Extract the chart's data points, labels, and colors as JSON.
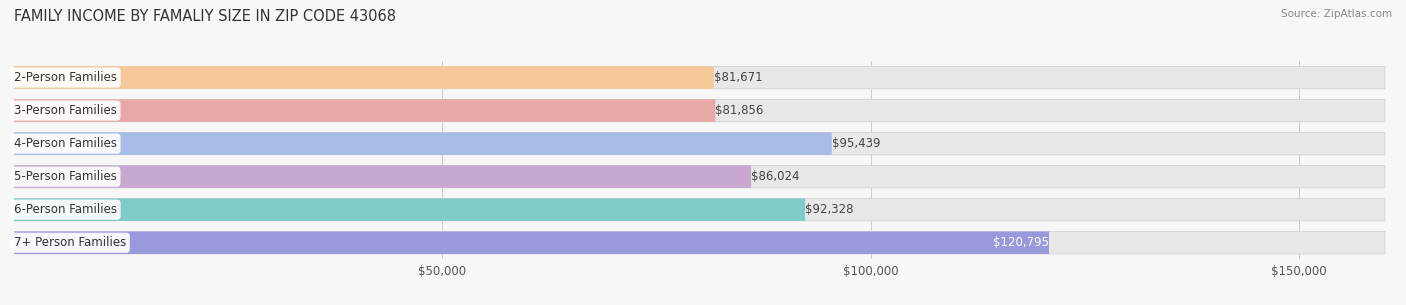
{
  "title": "FAMILY INCOME BY FAMALIY SIZE IN ZIP CODE 43068",
  "source": "Source: ZipAtlas.com",
  "categories": [
    "2-Person Families",
    "3-Person Families",
    "4-Person Families",
    "5-Person Families",
    "6-Person Families",
    "7+ Person Families"
  ],
  "values": [
    81671,
    81856,
    95439,
    86024,
    92328,
    120795
  ],
  "bar_colors": [
    "#f5c89a",
    "#e8a8a8",
    "#a8bce8",
    "#c8a8d0",
    "#7eccc8",
    "#9999dd"
  ],
  "bar_bg_color": "#e8e8e8",
  "value_labels": [
    "$81,671",
    "$81,856",
    "$95,439",
    "$86,024",
    "$92,328",
    "$120,795"
  ],
  "xlim": [
    0,
    160000
  ],
  "xticks": [
    50000,
    100000,
    150000
  ],
  "xtick_labels": [
    "$50,000",
    "$100,000",
    "$150,000"
  ],
  "background_color": "#f7f7f7",
  "bar_height": 0.68,
  "title_fontsize": 10.5,
  "label_fontsize": 8.5,
  "tick_fontsize": 8.5,
  "value_label_color_default": "#444444",
  "value_label_color_inside": "#ffffff",
  "inside_threshold": 115000
}
